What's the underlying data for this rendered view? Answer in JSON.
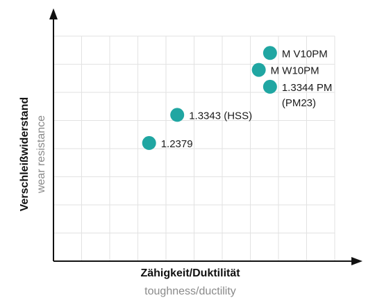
{
  "chart_data": {
    "type": "scatter",
    "xlabel": "Zähigkeit/Duktilität",
    "xlabel_sub": "toughness/ductility",
    "ylabel": "Verschleißwiderstand",
    "ylabel_sub": "wear resistance",
    "grid": true,
    "grid_x_divisions": 10,
    "grid_y_divisions": 8,
    "xlim": [
      0,
      10
    ],
    "ylim": [
      0,
      8
    ],
    "points_color": "#20a6a2",
    "points": [
      {
        "label": "M V10PM",
        "label2": "",
        "x": 7.7,
        "y": 7.4
      },
      {
        "label": "M W10PM",
        "label2": "",
        "x": 7.3,
        "y": 6.8
      },
      {
        "label": "1.3344 PM",
        "label2": "(PM23)",
        "x": 7.7,
        "y": 6.2
      },
      {
        "label": "1.3343 (HSS)",
        "label2": "",
        "x": 4.4,
        "y": 5.2
      },
      {
        "label": "1.2379",
        "label2": "",
        "x": 3.4,
        "y": 4.2
      }
    ]
  }
}
